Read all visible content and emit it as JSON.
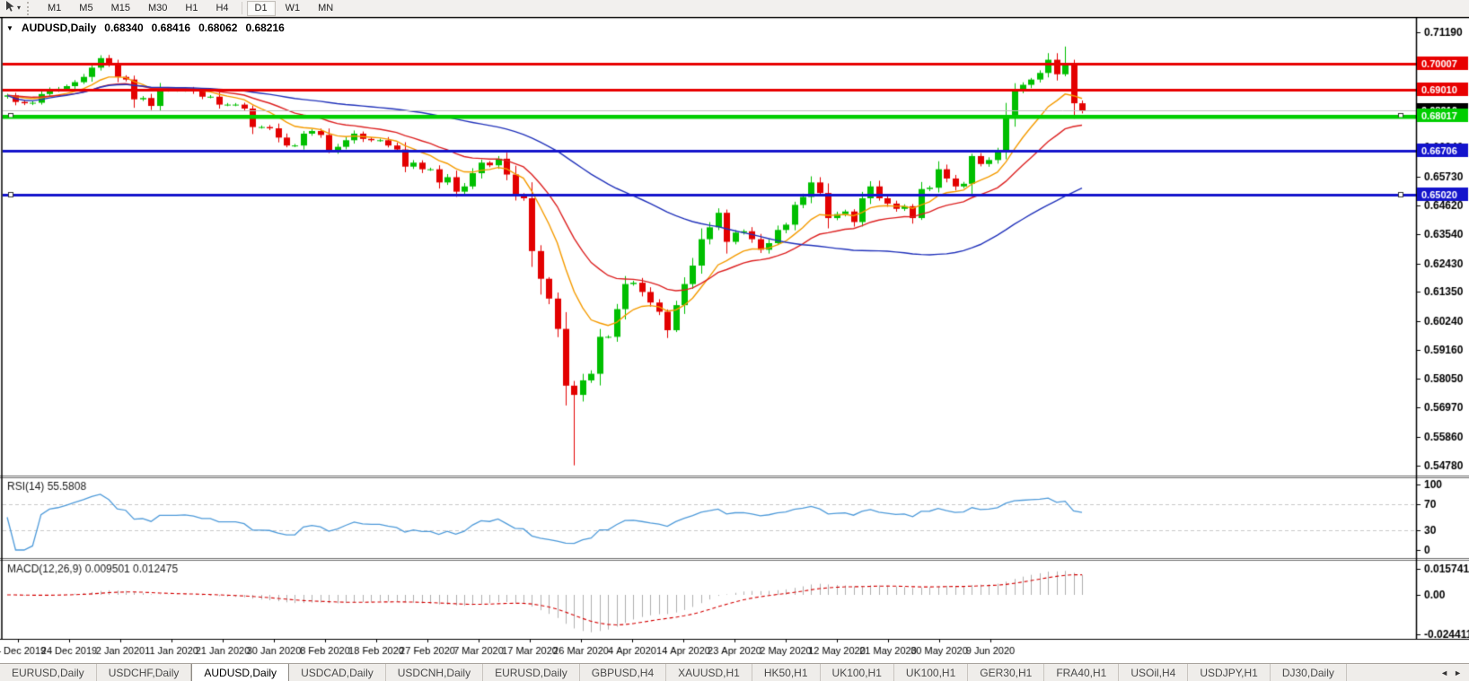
{
  "toolbar": {
    "cursor_tool": "cursor-arrow",
    "timeframes": [
      {
        "label": "M1",
        "active": false
      },
      {
        "label": "M5",
        "active": false
      },
      {
        "label": "M15",
        "active": false
      },
      {
        "label": "M30",
        "active": false
      },
      {
        "label": "H1",
        "active": false
      },
      {
        "label": "H4",
        "active": false
      },
      {
        "label": "D1",
        "active": true
      },
      {
        "label": "W1",
        "active": false
      },
      {
        "label": "MN",
        "active": false
      }
    ]
  },
  "chart": {
    "title": {
      "collapse_icon": "▼",
      "symbol": "AUDUSD,Daily",
      "open": "0.68340",
      "high": "0.68416",
      "low": "0.68062",
      "close": "0.68216"
    }
  },
  "chart_data": {
    "type": "candlestick",
    "symbol": "AUDUSD",
    "timeframe": "Daily",
    "price_range": {
      "top": 0.7119,
      "bottom": 0.5478
    },
    "closes": [
      0.688,
      0.6855,
      0.685,
      0.6852,
      0.6885,
      0.69,
      0.6905,
      0.6915,
      0.693,
      0.695,
      0.6985,
      0.7021,
      0.7,
      0.695,
      0.694,
      0.6865,
      0.687,
      0.684,
      0.69,
      0.69,
      0.69,
      0.6905,
      0.6895,
      0.6875,
      0.6875,
      0.6845,
      0.6845,
      0.6845,
      0.683,
      0.676,
      0.676,
      0.6755,
      0.672,
      0.669,
      0.669,
      0.6735,
      0.6745,
      0.673,
      0.667,
      0.6685,
      0.671,
      0.6735,
      0.6715,
      0.671,
      0.671,
      0.669,
      0.6675,
      0.661,
      0.6625,
      0.66,
      0.66,
      0.655,
      0.657,
      0.6515,
      0.6535,
      0.6585,
      0.6625,
      0.6615,
      0.664,
      0.658,
      0.65,
      0.649,
      0.629,
      0.6185,
      0.611,
      0.5995,
      0.578,
      0.5745,
      0.58,
      0.5825,
      0.5965,
      0.5965,
      0.607,
      0.6165,
      0.617,
      0.6135,
      0.6095,
      0.606,
      0.599,
      0.6085,
      0.6165,
      0.6235,
      0.6335,
      0.638,
      0.6435,
      0.6325,
      0.636,
      0.6365,
      0.6335,
      0.6295,
      0.632,
      0.637,
      0.639,
      0.6465,
      0.6495,
      0.655,
      0.651,
      0.6415,
      0.643,
      0.644,
      0.64,
      0.649,
      0.6535,
      0.649,
      0.647,
      0.645,
      0.646,
      0.6415,
      0.6525,
      0.653,
      0.66,
      0.6565,
      0.6535,
      0.6545,
      0.665,
      0.662,
      0.6635,
      0.6665,
      0.68,
      0.6895,
      0.692,
      0.694,
      0.6965,
      0.7015,
      0.696,
      0.7,
      0.685,
      0.68216
    ],
    "wick_overrides": {
      "11": {
        "high": 0.7032
      },
      "62": {
        "low": 0.623
      },
      "63": {
        "low": 0.6125
      },
      "67": {
        "low": 0.5478
      },
      "123": {
        "high": 0.704
      },
      "125": {
        "high": 0.7065
      },
      "126": {
        "high": 0.7015
      }
    },
    "moving_averages": [
      {
        "name": "fast-ma",
        "type": "ema",
        "period": 10,
        "color": "#f59b00"
      },
      {
        "name": "medium-ma",
        "type": "ema",
        "period": 21,
        "color": "#dd2222"
      },
      {
        "name": "slow-ma",
        "type": "sma",
        "period": 50,
        "color": "#2233bb"
      }
    ],
    "horizontal_lines": [
      {
        "price": 0.70007,
        "color": "#e80000",
        "width": 3,
        "selected": false
      },
      {
        "price": 0.6901,
        "color": "#e80000",
        "width": 3,
        "selected": false
      },
      {
        "price": 0.68216,
        "color": "#bcbcbc",
        "width": 1,
        "selected": false
      },
      {
        "price": 0.68017,
        "color": "#00ce00",
        "width": 3,
        "selected": true
      },
      {
        "price": 0.6796,
        "color": "#00ce00",
        "width": 2,
        "selected": false
      },
      {
        "price": 0.66706,
        "color": "#1414cc",
        "width": 3,
        "selected": false
      },
      {
        "price": 0.6502,
        "color": "#1414cc",
        "width": 3,
        "selected": true
      }
    ],
    "price_axis": {
      "ticks": [
        "0.71190",
        "0.70110",
        "0.69030",
        "0.67920",
        "0.66840",
        "0.65730",
        "0.64620",
        "0.63540",
        "0.62430",
        "0.61350",
        "0.60240",
        "0.59160",
        "0.58050",
        "0.56970",
        "0.55860",
        "0.54780"
      ],
      "badges": [
        {
          "value": "0.70007",
          "bg": "#e80000",
          "fg": "#ffffff"
        },
        {
          "value": "0.69010",
          "bg": "#e80000",
          "fg": "#ffffff"
        },
        {
          "value": "0.68216",
          "bg": "#000000",
          "fg": "#ffffff"
        },
        {
          "value": "0.68017",
          "bg": "#00ce00",
          "fg": "#ffffff"
        },
        {
          "value": "0.66706",
          "bg": "#1414cc",
          "fg": "#ffffff"
        },
        {
          "value": "0.65020",
          "bg": "#1414cc",
          "fg": "#ffffff"
        }
      ]
    },
    "x_labels": [
      "14 Dec 2019",
      "24 Dec 2019",
      "2 Jan 2020",
      "11 Jan 2020",
      "21 Jan 2020",
      "30 Jan 2020",
      "8 Feb 2020",
      "18 Feb 2020",
      "27 Feb 2020",
      "7 Mar 2020",
      "17 Mar 2020",
      "26 Mar 2020",
      "4 Apr 2020",
      "14 Apr 2020",
      "23 Apr 2020",
      "2 May 2020",
      "12 May 2020",
      "21 May 2020",
      "30 May 2020",
      "9 Jun 2020"
    ],
    "colors": {
      "up": "#00bf00",
      "down": "#e30000",
      "wick_up": "#00bf00",
      "wick_down": "#e30000",
      "bg": "#ffffff",
      "frame": "#000000",
      "separator": "#6e6e6e"
    }
  },
  "rsi_panel": {
    "label": "RSI(14)",
    "value": "55.5808",
    "axis_labels": [
      "100",
      "70",
      "30",
      "0"
    ],
    "level_lines": [
      70,
      30
    ],
    "line_color": "#4f9bda",
    "period": 14,
    "range": [
      0,
      100
    ]
  },
  "macd_panel": {
    "label": "MACD(12,26,9)",
    "main_value": "0.009501",
    "signal_value": "0.012475",
    "axis_labels": [
      "0.015741",
      "0.00",
      "-0.024411"
    ],
    "fast": 12,
    "slow": 26,
    "signal": 9,
    "histogram_color": "#b0b0b0",
    "signal_color": "#d40000"
  },
  "tabs": {
    "items": [
      {
        "label": "EURUSD,Daily",
        "active": false
      },
      {
        "label": "USDCHF,Daily",
        "active": false
      },
      {
        "label": "AUDUSD,Daily",
        "active": true
      },
      {
        "label": "USDCAD,Daily",
        "active": false
      },
      {
        "label": "USDCNH,Daily",
        "active": false
      },
      {
        "label": "EURUSD,Daily",
        "active": false
      },
      {
        "label": "GBPUSD,H4",
        "active": false
      },
      {
        "label": "XAUUSD,H1",
        "active": false
      },
      {
        "label": "HK50,H1",
        "active": false
      },
      {
        "label": "UK100,H1",
        "active": false
      },
      {
        "label": "UK100,H1",
        "active": false
      },
      {
        "label": "GER30,H1",
        "active": false
      },
      {
        "label": "FRA40,H1",
        "active": false
      },
      {
        "label": "USOil,H4",
        "active": false
      },
      {
        "label": "USDJPY,H1",
        "active": false
      },
      {
        "label": "DJ30,Daily",
        "active": false
      }
    ],
    "scroll_left_icon": "◄",
    "scroll_right_icon": "►"
  }
}
